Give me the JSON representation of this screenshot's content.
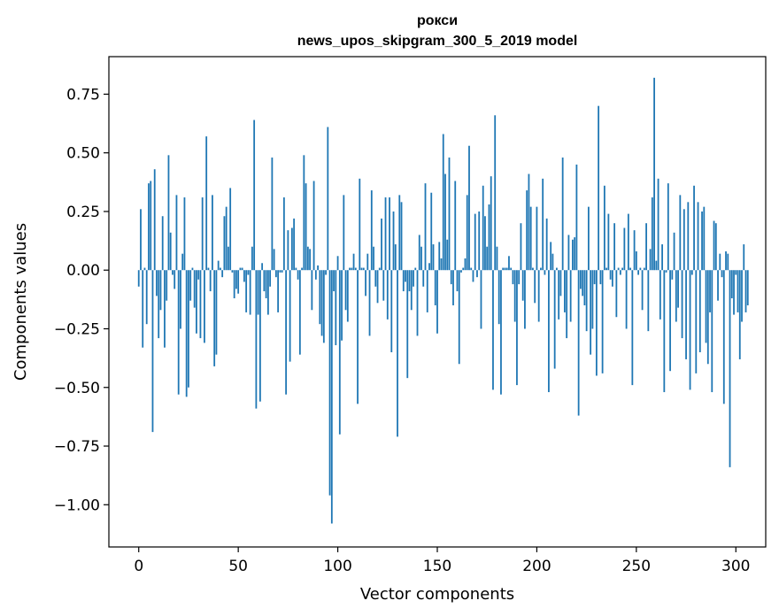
{
  "chart_data": {
    "type": "bar",
    "title": "рокси",
    "subtitle": "news_upos_skipgram_300_5_2019 model",
    "xlabel": "Vector components",
    "ylabel": "Components values",
    "xlim": [
      -15,
      315
    ],
    "ylim": [
      -1.18,
      0.91
    ],
    "xticks": [
      0,
      50,
      100,
      150,
      200,
      250,
      300
    ],
    "xtick_labels": [
      "0",
      "50",
      "100",
      "150",
      "200",
      "250",
      "300"
    ],
    "yticks": [
      -1.0,
      -0.75,
      -0.5,
      -0.25,
      0.0,
      0.25,
      0.5,
      0.75
    ],
    "ytick_labels": [
      "−1.00",
      "−0.75",
      "−0.50",
      "−0.25",
      "0.00",
      "0.25",
      "0.50",
      "0.75"
    ],
    "grid": false,
    "bar_color": "#1f77b4",
    "values": [
      -0.07,
      0.26,
      -0.33,
      0.01,
      -0.23,
      0.37,
      0.38,
      -0.69,
      0.43,
      -0.11,
      -0.29,
      -0.17,
      0.23,
      -0.33,
      -0.13,
      0.49,
      0.16,
      -0.02,
      -0.08,
      0.32,
      -0.53,
      -0.25,
      0.07,
      0.31,
      -0.54,
      -0.5,
      -0.13,
      0.01,
      -0.16,
      -0.27,
      -0.04,
      -0.29,
      0.31,
      -0.31,
      0.57,
      0.01,
      -0.09,
      0.32,
      -0.41,
      -0.36,
      0.04,
      0.01,
      -0.03,
      0.23,
      0.27,
      0.1,
      0.35,
      -0.01,
      -0.12,
      -0.08,
      -0.1,
      0.01,
      0.01,
      -0.05,
      -0.18,
      -0.02,
      -0.19,
      0.1,
      0.64,
      -0.59,
      -0.19,
      -0.56,
      0.03,
      -0.09,
      -0.12,
      -0.19,
      -0.07,
      0.48,
      0.09,
      -0.03,
      -0.18,
      -0.01,
      -0.01,
      0.31,
      -0.53,
      0.17,
      -0.39,
      0.18,
      0.22,
      0.01,
      -0.04,
      -0.36,
      0.01,
      0.49,
      0.37,
      0.1,
      0.09,
      -0.17,
      0.38,
      -0.04,
      0.02,
      -0.23,
      -0.28,
      -0.31,
      -0.02,
      0.61,
      -0.96,
      -1.08,
      -0.09,
      -0.32,
      0.06,
      -0.7,
      -0.3,
      0.32,
      -0.17,
      -0.22,
      0.01,
      0.01,
      0.07,
      0.01,
      -0.57,
      0.39,
      0.01,
      0.01,
      -0.11,
      0.07,
      -0.28,
      0.34,
      0.1,
      -0.07,
      -0.14,
      0.01,
      0.22,
      -0.13,
      0.31,
      -0.21,
      0.31,
      -0.35,
      0.25,
      0.11,
      -0.71,
      0.32,
      0.29,
      -0.09,
      -0.05,
      -0.46,
      -0.09,
      -0.17,
      -0.07,
      0.01,
      -0.28,
      0.15,
      0.1,
      -0.07,
      0.37,
      -0.18,
      0.03,
      0.33,
      0.11,
      -0.15,
      -0.27,
      0.12,
      0.05,
      0.58,
      0.41,
      0.13,
      0.48,
      -0.06,
      -0.15,
      0.38,
      -0.09,
      -0.4,
      -0.01,
      0.01,
      0.05,
      0.32,
      0.53,
      0.01,
      -0.05,
      0.24,
      -0.03,
      0.25,
      -0.25,
      0.36,
      0.23,
      0.1,
      0.28,
      0.4,
      -0.51,
      0.66,
      0.1,
      -0.23,
      -0.53,
      0.01,
      0.01,
      0.01,
      0.06,
      0.01,
      -0.06,
      -0.22,
      -0.49,
      -0.06,
      0.2,
      -0.13,
      -0.25,
      0.34,
      0.41,
      0.27,
      0.01,
      -0.14,
      0.27,
      -0.22,
      0.01,
      0.39,
      -0.02,
      0.22,
      -0.52,
      0.12,
      0.07,
      -0.42,
      0.01,
      -0.21,
      -0.11,
      0.48,
      -0.18,
      -0.29,
      0.15,
      -0.22,
      0.13,
      0.14,
      0.45,
      -0.62,
      -0.08,
      -0.11,
      -0.15,
      -0.26,
      0.27,
      -0.36,
      -0.25,
      -0.06,
      -0.45,
      0.7,
      -0.06,
      -0.44,
      0.36,
      0.01,
      0.24,
      -0.04,
      -0.07,
      0.2,
      -0.2,
      0.01,
      -0.02,
      0.01,
      0.18,
      -0.25,
      0.24,
      0.01,
      -0.49,
      0.17,
      0.08,
      -0.02,
      0.01,
      -0.17,
      0.01,
      0.2,
      -0.26,
      0.09,
      0.31,
      0.82,
      0.04,
      0.39,
      -0.21,
      0.11,
      -0.52,
      -0.01,
      0.37,
      -0.43,
      -0.04,
      0.16,
      -0.22,
      -0.16,
      0.32,
      -0.29,
      0.26,
      -0.38,
      0.29,
      -0.51,
      -0.02,
      0.36,
      -0.44,
      0.29,
      -0.35,
      0.25,
      0.27,
      -0.31,
      -0.4,
      -0.18,
      -0.52,
      0.21,
      0.2,
      -0.13,
      0.07,
      -0.03,
      -0.57,
      0.08,
      0.07,
      -0.84,
      -0.12,
      -0.19,
      -0.02,
      -0.18,
      -0.38,
      -0.22,
      0.11,
      -0.18,
      -0.15
    ]
  }
}
